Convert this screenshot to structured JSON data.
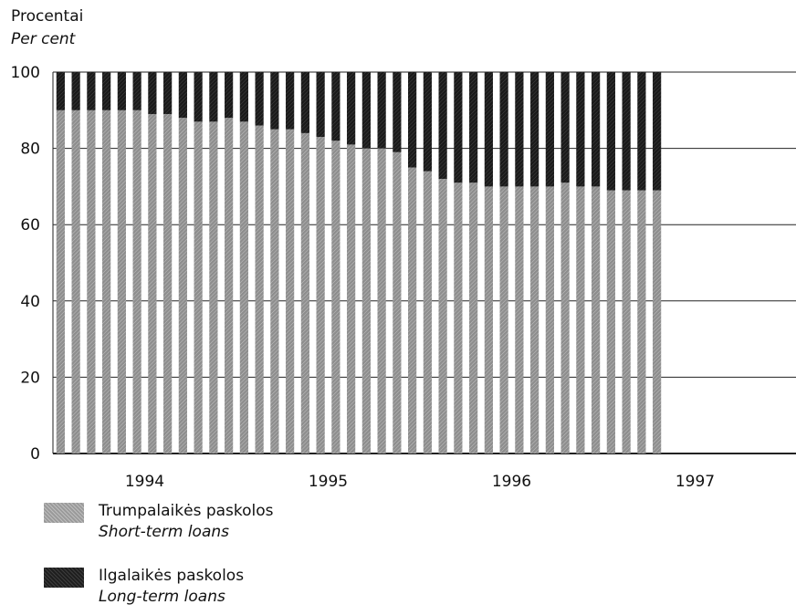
{
  "chart_data": {
    "type": "bar",
    "stacked": true,
    "ylabel_lt": "Procentai",
    "ylabel_en": "Per cent",
    "ylim": [
      0,
      100
    ],
    "yticks": [
      0,
      20,
      40,
      60,
      80,
      100
    ],
    "year_labels": [
      "1994",
      "1995",
      "1996",
      "1997"
    ],
    "grid": true,
    "legend_placement": "bottom-left",
    "series": [
      {
        "name_lt": "Trumpalaikės paskolos",
        "name_en": "Short-term loans",
        "color": "#9a9a9a",
        "values": [
          90,
          90,
          90,
          90,
          90,
          90,
          89,
          89,
          88,
          87,
          87,
          88,
          87,
          86,
          85,
          85,
          84,
          83,
          82,
          81,
          80,
          80,
          79,
          75,
          74,
          72,
          71,
          71,
          70,
          70,
          70,
          70,
          70,
          71,
          70,
          70,
          69,
          69,
          69,
          69
        ]
      },
      {
        "name_lt": "Ilgalaikės paskolos",
        "name_en": "Long-term loans",
        "color": "#1e1e1e",
        "values": [
          10,
          10,
          10,
          10,
          10,
          10,
          11,
          11,
          12,
          13,
          13,
          12,
          13,
          14,
          15,
          15,
          16,
          17,
          18,
          19,
          20,
          20,
          21,
          25,
          26,
          28,
          29,
          29,
          30,
          30,
          30,
          30,
          30,
          29,
          30,
          30,
          31,
          31,
          31,
          31
        ]
      }
    ]
  }
}
